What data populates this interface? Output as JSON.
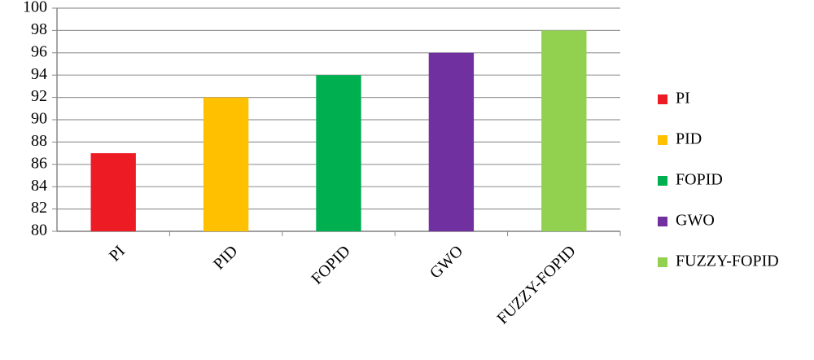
{
  "chart_data": {
    "type": "bar",
    "categories": [
      "PI",
      "PID",
      "FOPID",
      "GWO",
      "FUZZY-FOPID"
    ],
    "values": [
      87,
      92,
      94,
      96,
      98
    ],
    "colors": [
      "#ed1c24",
      "#ffc000",
      "#00b050",
      "#7030a0",
      "#92d050"
    ],
    "ylim": [
      80,
      100
    ],
    "yticks": [
      80,
      82,
      84,
      86,
      88,
      90,
      92,
      94,
      96,
      98,
      100
    ],
    "grid": true,
    "legend": "right"
  }
}
